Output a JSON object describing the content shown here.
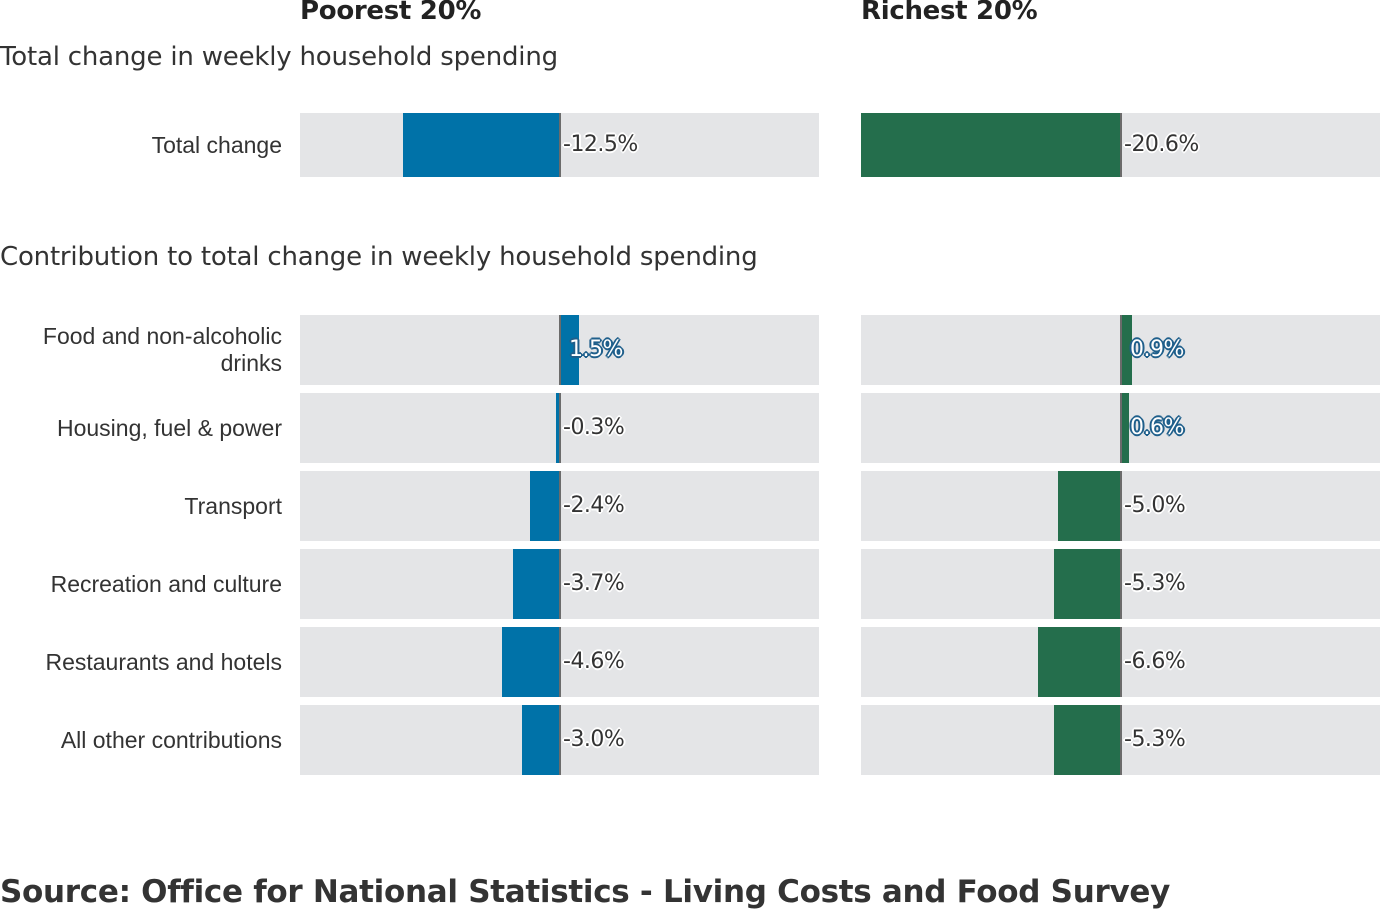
{
  "colors": {
    "poorest": "#0072a8",
    "richest": "#246e4c",
    "track": "#e4e5e7"
  },
  "chart_data": {
    "type": "bar",
    "orientation": "horizontal",
    "value_unit": "%",
    "panels": [
      {
        "name": "Poorest 20%",
        "color": "#0072a8"
      },
      {
        "name": "Richest 20%",
        "color": "#246e4c"
      }
    ],
    "sections": [
      {
        "title": "Total change in weekly household spending",
        "categories": [
          "Total change"
        ],
        "series": [
          {
            "name": "Poorest 20%",
            "values": [
              -12.5
            ],
            "labels": [
              "-12.5%"
            ]
          },
          {
            "name": "Richest 20%",
            "values": [
              -20.6
            ],
            "labels": [
              "-20.6%"
            ]
          }
        ]
      },
      {
        "title": "Contribution to total change in weekly household spending",
        "categories": [
          "Food and non-alcoholic drinks",
          "Housing, fuel & power",
          "Transport",
          "Recreation and culture",
          "Restaurants and hotels",
          "All other contributions"
        ],
        "series": [
          {
            "name": "Poorest 20%",
            "values": [
              1.5,
              -0.3,
              -2.4,
              -3.7,
              -4.6,
              -3.0
            ],
            "labels": [
              "1.5%",
              "-0.3%",
              "-2.4%",
              "-3.7%",
              "-4.6%",
              "-3.0%"
            ]
          },
          {
            "name": "Richest 20%",
            "values": [
              0.9,
              0.6,
              -5.0,
              -5.3,
              -6.6,
              -5.3
            ],
            "labels": [
              "0.9%",
              "0.6%",
              "-5.0%",
              "-5.3%",
              "-6.6%",
              "-5.3%"
            ]
          }
        ]
      }
    ],
    "grid": false
  },
  "source": "Source: Office for National Statistics - Living Costs and Food Survey"
}
